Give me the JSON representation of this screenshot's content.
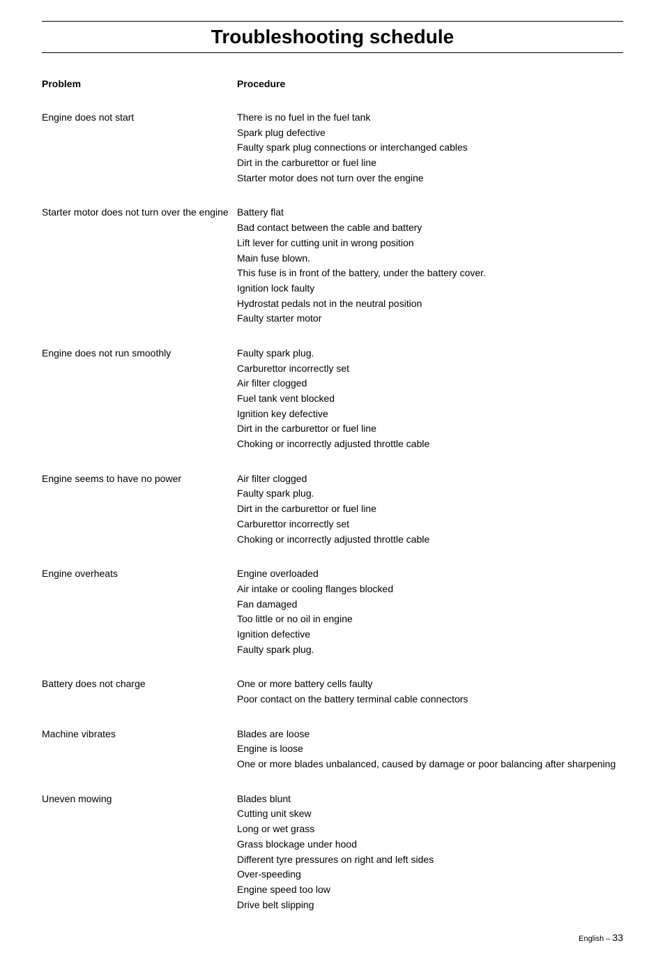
{
  "title": "Troubleshooting schedule",
  "headers": {
    "problem": "Problem",
    "procedure": "Procedure"
  },
  "sections": [
    {
      "problem": "Engine does not start",
      "procedures": [
        "There is no fuel in the fuel tank",
        "Spark plug defective",
        "Faulty spark plug connections or interchanged cables",
        "Dirt in the carburettor or fuel line",
        "Starter motor does not turn over the engine"
      ]
    },
    {
      "problem": "Starter motor does not turn over the engine",
      "procedures": [
        "Battery flat",
        "Bad contact between the cable and battery",
        "Lift lever for cutting unit in wrong position",
        "Main fuse blown.",
        "This fuse is in front of the battery, under the battery cover.",
        "Ignition lock faulty",
        "Hydrostat pedals not in the neutral position",
        "Faulty starter motor"
      ]
    },
    {
      "problem": "Engine does not run smoothly",
      "procedures": [
        "Faulty spark plug.",
        "Carburettor incorrectly set",
        "Air filter clogged",
        "Fuel tank vent blocked",
        "Ignition key defective",
        "Dirt in the carburettor or fuel line",
        "Choking or incorrectly adjusted throttle cable"
      ]
    },
    {
      "problem": "Engine seems to have no power",
      "procedures": [
        "Air filter clogged",
        "Faulty spark plug.",
        "Dirt in the carburettor or fuel line",
        "Carburettor incorrectly set",
        "Choking or incorrectly adjusted throttle cable"
      ]
    },
    {
      "problem": "Engine overheats",
      "procedures": [
        "Engine overloaded",
        "Air intake or cooling flanges blocked",
        "Fan damaged",
        "Too little or no oil in engine",
        "Ignition defective",
        "Faulty spark plug."
      ]
    },
    {
      "problem": "Battery does not charge",
      "procedures": [
        "One or more battery cells faulty",
        "Poor contact on the battery terminal cable connectors"
      ]
    },
    {
      "problem": "Machine vibrates",
      "procedures": [
        "Blades are loose",
        "Engine is loose",
        "One or more blades unbalanced, caused by damage or poor balancing after sharpening"
      ]
    },
    {
      "problem": "Uneven mowing",
      "procedures": [
        "Blades blunt",
        "Cutting unit skew",
        "Long or wet grass",
        "Grass blockage under hood",
        "Different tyre pressures on right and left sides",
        "Over-speeding",
        "Engine speed too low",
        "Drive belt slipping"
      ]
    }
  ],
  "footer": {
    "language": "English",
    "separator": " – ",
    "page": "33"
  }
}
